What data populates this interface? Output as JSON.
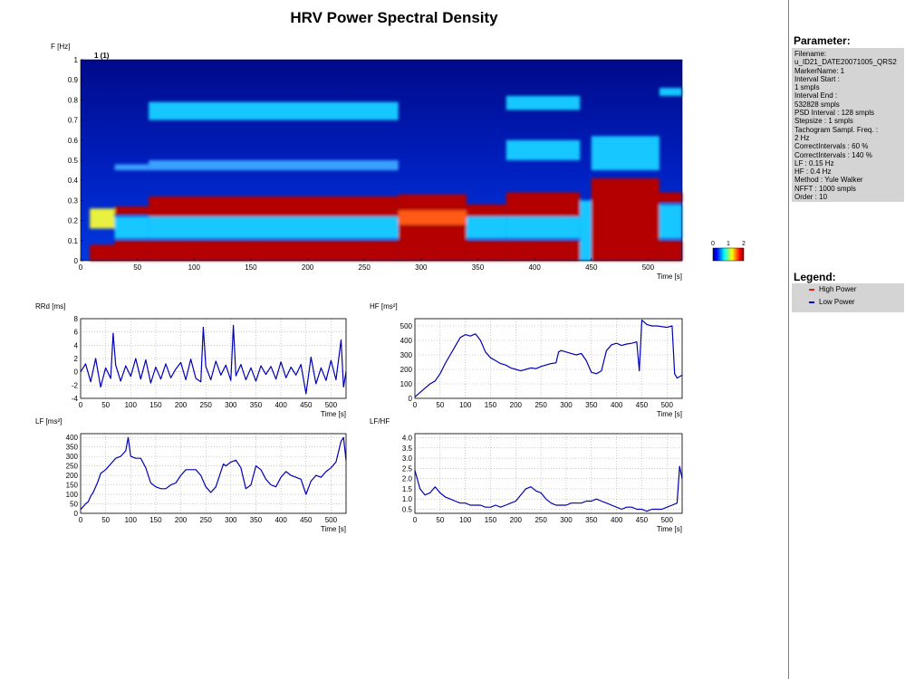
{
  "title": "HRV Power Spectral Density",
  "spectrogram": {
    "ylabel": "F [Hz]",
    "xlabel": "Time [s]",
    "marker_label": "1 (1)",
    "yticks": [
      "0",
      "0.1",
      "0.2",
      "0.3",
      "0.4",
      "0.5",
      "0.6",
      "0.7",
      "0.8",
      "0.9",
      "1"
    ],
    "xticks": [
      "0",
      "50",
      "100",
      "150",
      "200",
      "250",
      "300",
      "350",
      "400",
      "450",
      "500"
    ],
    "colorbar_ticks": [
      "0",
      "1",
      "2"
    ]
  },
  "chart_data": [
    {
      "type": "heatmap",
      "name": "spectrogram",
      "title": "HRV Power Spectral Density",
      "xlabel": "Time [s]",
      "ylabel": "F [Hz]",
      "xlim": [
        0,
        530
      ],
      "ylim": [
        0,
        1
      ],
      "colorbar": [
        0,
        2
      ],
      "segments": [
        {
          "t": [
            0,
            8
          ],
          "bands": []
        },
        {
          "t": [
            8,
            30
          ],
          "bands": [
            [
              0.0,
              0.08,
              "red"
            ],
            [
              0.16,
              0.26,
              "yellow"
            ]
          ]
        },
        {
          "t": [
            30,
            60
          ],
          "bands": [
            [
              0.0,
              0.1,
              "red"
            ],
            [
              0.11,
              0.22,
              "cyan"
            ],
            [
              0.23,
              0.27,
              "red"
            ],
            [
              0.45,
              0.48,
              "lightblue"
            ]
          ]
        },
        {
          "t": [
            60,
            280
          ],
          "bands": [
            [
              0.0,
              0.1,
              "red"
            ],
            [
              0.11,
              0.22,
              "cyan"
            ],
            [
              0.22,
              0.32,
              "red"
            ],
            [
              0.7,
              0.79,
              "cyan"
            ],
            [
              0.45,
              0.5,
              "lightblue"
            ]
          ]
        },
        {
          "t": [
            280,
            340
          ],
          "bands": [
            [
              0.0,
              0.33,
              "red"
            ],
            [
              0.18,
              0.25,
              "orange"
            ]
          ]
        },
        {
          "t": [
            340,
            375
          ],
          "bands": [
            [
              0.0,
              0.1,
              "red"
            ],
            [
              0.11,
              0.22,
              "cyan"
            ],
            [
              0.22,
              0.28,
              "red"
            ]
          ]
        },
        {
          "t": [
            375,
            440
          ],
          "bands": [
            [
              0.0,
              0.1,
              "red"
            ],
            [
              0.11,
              0.22,
              "cyan"
            ],
            [
              0.22,
              0.34,
              "red"
            ],
            [
              0.5,
              0.6,
              "cyan"
            ],
            [
              0.75,
              0.82,
              "cyan"
            ]
          ]
        },
        {
          "t": [
            440,
            450
          ],
          "bands": [
            [
              0.0,
              0.3,
              "cyan"
            ]
          ]
        },
        {
          "t": [
            450,
            510
          ],
          "bands": [
            [
              0.0,
              0.41,
              "red"
            ],
            [
              0.45,
              0.62,
              "cyan"
            ]
          ]
        },
        {
          "t": [
            510,
            530
          ],
          "bands": [
            [
              0.0,
              0.1,
              "red"
            ],
            [
              0.11,
              0.28,
              "cyan"
            ],
            [
              0.29,
              0.34,
              "red"
            ],
            [
              0.82,
              0.86,
              "cyan"
            ]
          ]
        }
      ]
    },
    {
      "type": "line",
      "name": "rrd",
      "title": "",
      "xlabel": "Time [s]",
      "ylabel": "RRd [ms]",
      "xlim": [
        0,
        530
      ],
      "ylim": [
        -4,
        8
      ],
      "yticks": [
        "-4",
        "-2",
        "0",
        "2",
        "4",
        "6",
        "8"
      ],
      "xticks": [
        "0",
        "50",
        "100",
        "150",
        "200",
        "250",
        "300",
        "350",
        "400",
        "450",
        "500"
      ],
      "x": [
        0,
        10,
        20,
        30,
        40,
        50,
        60,
        65,
        70,
        80,
        90,
        100,
        110,
        120,
        130,
        140,
        150,
        160,
        170,
        180,
        190,
        200,
        210,
        220,
        230,
        240,
        245,
        250,
        260,
        270,
        280,
        290,
        300,
        305,
        310,
        320,
        330,
        340,
        350,
        360,
        370,
        380,
        390,
        400,
        410,
        420,
        430,
        440,
        450,
        460,
        470,
        480,
        490,
        500,
        510,
        520,
        525,
        530
      ],
      "values": [
        0,
        1.2,
        -1.5,
        2,
        -2.3,
        0.6,
        -1,
        5.8,
        1,
        -1.4,
        0.9,
        -0.7,
        2,
        -1.1,
        1.8,
        -1.7,
        0.7,
        -1.1,
        1.2,
        -0.9,
        0.4,
        1.4,
        -1.2,
        1.9,
        -1,
        -1.5,
        6.7,
        0.8,
        -1.2,
        1.6,
        -0.5,
        1,
        -1.3,
        7,
        -0.6,
        1.1,
        -1.2,
        0.6,
        -1.4,
        0.9,
        -0.4,
        0.8,
        -1.1,
        1.5,
        -0.9,
        0.7,
        -0.5,
        1.1,
        -3.3,
        2.2,
        -1.8,
        0.6,
        -1.3,
        1.7,
        -1.2,
        4.8,
        -2.3,
        0
      ]
    },
    {
      "type": "line",
      "name": "hf",
      "title": "",
      "xlabel": "Time [s]",
      "ylabel": "HF [ms²]",
      "xlim": [
        0,
        530
      ],
      "ylim": [
        0,
        550
      ],
      "yticks": [
        "0",
        "100",
        "200",
        "300",
        "400",
        "500"
      ],
      "xticks": [
        "0",
        "50",
        "100",
        "150",
        "200",
        "250",
        "300",
        "350",
        "400",
        "450",
        "500"
      ],
      "x": [
        0,
        10,
        20,
        30,
        40,
        50,
        60,
        70,
        80,
        90,
        100,
        110,
        120,
        130,
        140,
        150,
        160,
        170,
        180,
        190,
        200,
        210,
        220,
        230,
        240,
        250,
        260,
        270,
        280,
        285,
        290,
        300,
        310,
        320,
        330,
        340,
        350,
        360,
        370,
        380,
        390,
        400,
        410,
        420,
        430,
        440,
        445,
        450,
        460,
        470,
        480,
        490,
        500,
        510,
        515,
        520,
        530
      ],
      "values": [
        10,
        40,
        70,
        100,
        120,
        170,
        240,
        300,
        360,
        420,
        440,
        430,
        445,
        400,
        320,
        280,
        260,
        240,
        230,
        210,
        200,
        190,
        200,
        210,
        205,
        220,
        230,
        240,
        245,
        320,
        330,
        320,
        310,
        300,
        310,
        260,
        180,
        170,
        190,
        330,
        370,
        380,
        365,
        375,
        380,
        390,
        190,
        540,
        510,
        500,
        500,
        495,
        490,
        500,
        170,
        140,
        160
      ]
    },
    {
      "type": "line",
      "name": "lf",
      "title": "",
      "xlabel": "Time [s]",
      "ylabel": "LF [ms²]",
      "xlim": [
        0,
        530
      ],
      "ylim": [
        0,
        420
      ],
      "yticks": [
        "0",
        "50",
        "100",
        "150",
        "200",
        "250",
        "300",
        "350",
        "400"
      ],
      "xticks": [
        "0",
        "50",
        "100",
        "150",
        "200",
        "250",
        "300",
        "350",
        "400",
        "450",
        "500"
      ],
      "x": [
        0,
        10,
        15,
        20,
        25,
        30,
        35,
        40,
        50,
        60,
        70,
        80,
        90,
        95,
        100,
        110,
        120,
        130,
        140,
        150,
        160,
        170,
        180,
        190,
        200,
        210,
        220,
        230,
        240,
        250,
        260,
        270,
        280,
        285,
        290,
        300,
        310,
        320,
        330,
        340,
        350,
        360,
        370,
        380,
        390,
        400,
        410,
        420,
        430,
        440,
        450,
        460,
        470,
        480,
        490,
        500,
        510,
        520,
        525,
        530
      ],
      "values": [
        20,
        50,
        60,
        90,
        110,
        140,
        170,
        210,
        230,
        260,
        290,
        300,
        330,
        400,
        300,
        290,
        290,
        240,
        160,
        140,
        130,
        130,
        150,
        160,
        200,
        230,
        230,
        230,
        200,
        140,
        110,
        140,
        220,
        260,
        250,
        270,
        280,
        240,
        130,
        150,
        250,
        230,
        180,
        150,
        140,
        190,
        220,
        200,
        190,
        180,
        100,
        170,
        200,
        190,
        220,
        240,
        270,
        380,
        400,
        280
      ]
    },
    {
      "type": "line",
      "name": "lf-hf",
      "title": "",
      "xlabel": "Time [s]",
      "ylabel": "LF/HF",
      "xlim": [
        0,
        530
      ],
      "ylim": [
        0.3,
        4.2
      ],
      "yticks": [
        "0.5",
        "1.0",
        "1.5",
        "2.0",
        "2.5",
        "3.0",
        "3.5",
        "4.0"
      ],
      "xticks": [
        "0",
        "50",
        "100",
        "150",
        "200",
        "250",
        "300",
        "350",
        "400",
        "450",
        "500"
      ],
      "x": [
        0,
        10,
        20,
        30,
        40,
        50,
        60,
        70,
        80,
        90,
        100,
        110,
        120,
        130,
        140,
        150,
        160,
        170,
        180,
        190,
        200,
        210,
        220,
        230,
        240,
        250,
        260,
        270,
        280,
        290,
        300,
        310,
        320,
        330,
        340,
        350,
        360,
        370,
        380,
        390,
        400,
        410,
        420,
        430,
        440,
        450,
        460,
        470,
        480,
        490,
        500,
        510,
        520,
        525,
        530
      ],
      "values": [
        2.4,
        1.5,
        1.2,
        1.3,
        1.6,
        1.3,
        1.1,
        1.0,
        0.9,
        0.8,
        0.8,
        0.7,
        0.7,
        0.7,
        0.6,
        0.6,
        0.7,
        0.6,
        0.7,
        0.8,
        0.9,
        1.2,
        1.5,
        1.6,
        1.4,
        1.3,
        1.0,
        0.8,
        0.7,
        0.7,
        0.7,
        0.8,
        0.8,
        0.8,
        0.9,
        0.9,
        1.0,
        0.9,
        0.8,
        0.7,
        0.6,
        0.5,
        0.6,
        0.6,
        0.5,
        0.5,
        0.4,
        0.5,
        0.5,
        0.5,
        0.6,
        0.7,
        0.8,
        2.6,
        2.0
      ]
    }
  ],
  "colors": {
    "line": "#0000b4",
    "legend_high": "#e02020",
    "legend_low": "#0000c8",
    "panel_bg": "#d4d4d4"
  },
  "side_panel": {
    "parameter_heading": "Parameter:",
    "parameter_lines": [
      "Filename:",
      "   u_ID21_DATE20071005_QRS2",
      "MarkerName: 1",
      "Interval Start :",
      "1 smpls",
      "Interval End :",
      "532828 smpls",
      "PSD Interval : 128 smpls",
      "Stepsize : 1 smpls",
      "Tachogram Sampl. Freq. :",
      "2 Hz",
      "CorrectIntervals : 60 %",
      "CorrectIntervals : 140 %",
      "LF : 0.15 Hz",
      "HF : 0.4 Hz",
      "Method : Yule Walker",
      "NFFT : 1000 smpls",
      "Order : 10"
    ],
    "legend_heading": "Legend:",
    "legend_items": [
      "High Power",
      "Low Power"
    ]
  }
}
